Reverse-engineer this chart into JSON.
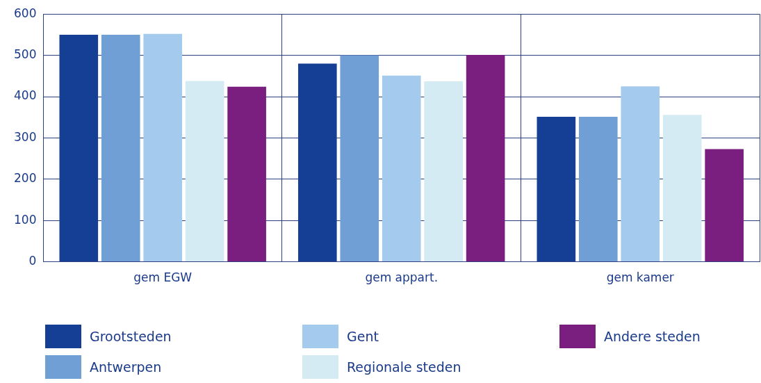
{
  "chart_data": {
    "type": "bar",
    "categories": [
      "gem EGW",
      "gem appart.",
      "gem kamer"
    ],
    "series": [
      {
        "name": "Grootsteden",
        "color": "#153f94",
        "values": [
          550,
          480,
          351
        ]
      },
      {
        "name": "Antwerpen",
        "color": "#6f9fd4",
        "values": [
          550,
          500,
          351
        ]
      },
      {
        "name": "Gent",
        "color": "#a4caee",
        "values": [
          552,
          451,
          425
        ]
      },
      {
        "name": "Regionale steden",
        "color": "#d5ebf4",
        "values": [
          438,
          437,
          356
        ]
      },
      {
        "name": "Andere steden",
        "color": "#7a1e7f",
        "values": [
          424,
          501,
          273
        ]
      }
    ],
    "ylim": [
      0,
      600
    ],
    "yticks": [
      0,
      100,
      200,
      300,
      400,
      500,
      600
    ],
    "grid": true,
    "legend": "bottom"
  }
}
